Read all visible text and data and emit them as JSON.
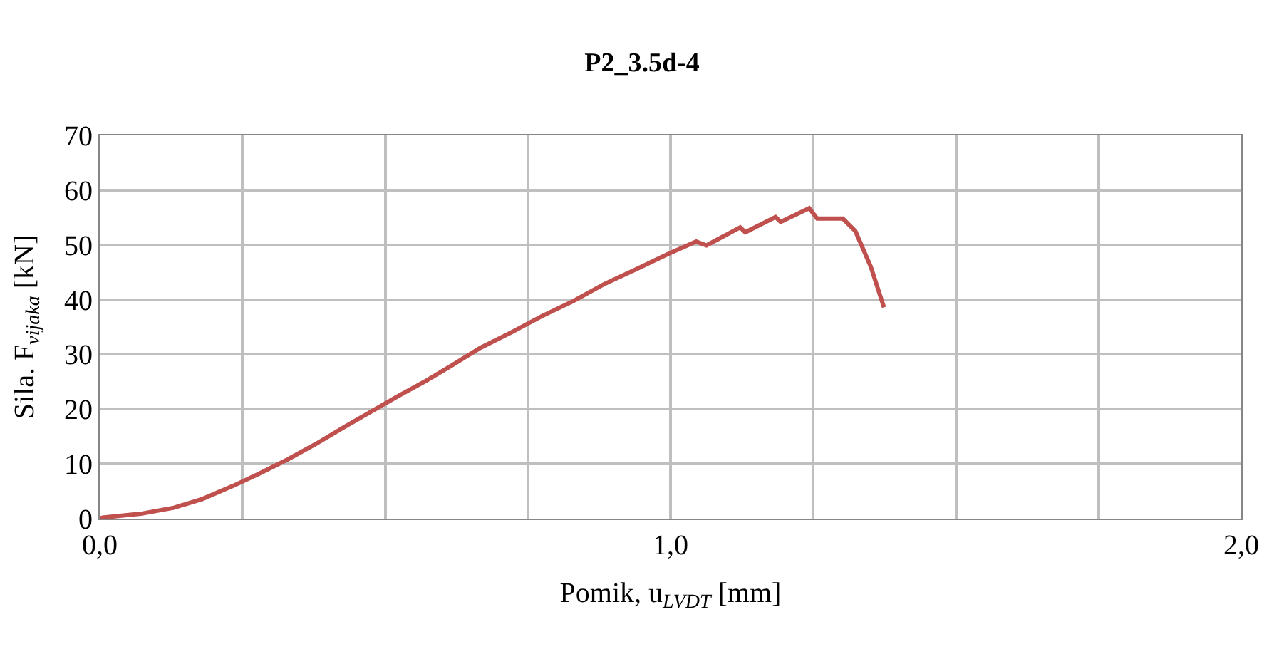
{
  "chart_data": {
    "type": "line",
    "title": "P2_3.5d-4",
    "xlabel": "Pomik, u$_{LVDT}$ [mm]",
    "ylabel": "Sila. F$_{vijaka}$ [kN]",
    "x": [
      0.0,
      0.005,
      0.072,
      0.13,
      0.18,
      0.234,
      0.279,
      0.329,
      0.378,
      0.428,
      0.473,
      0.523,
      0.572,
      0.617,
      0.667,
      0.721,
      0.775,
      0.829,
      0.883,
      0.941,
      0.995,
      1.045,
      1.063,
      1.122,
      1.131,
      1.184,
      1.193,
      1.243,
      1.257,
      1.302,
      1.324,
      1.351,
      1.374
    ],
    "series": [
      {
        "color": "#c0504d",
        "values": [
          0.0,
          0.2,
          0.9,
          2.0,
          3.6,
          6.0,
          8.2,
          10.8,
          13.6,
          16.7,
          19.4,
          22.4,
          25.2,
          28.0,
          31.2,
          34.0,
          37.0,
          39.7,
          42.8,
          45.6,
          48.3,
          50.6,
          49.9,
          53.2,
          52.3,
          55.1,
          54.2,
          56.7,
          54.8,
          54.8,
          52.5,
          46.0,
          38.6
        ]
      }
    ],
    "xlim": [
      0,
      2.0
    ],
    "ylim": [
      0,
      70
    ],
    "xticks": [
      {
        "value": 0,
        "label": "0,0"
      },
      {
        "value": 0.25,
        "label": null
      },
      {
        "value": 0.5,
        "label": null
      },
      {
        "value": 0.75,
        "label": null
      },
      {
        "value": 1.0,
        "label": "1,0"
      },
      {
        "value": 1.25,
        "label": null
      },
      {
        "value": 1.5,
        "label": null
      },
      {
        "value": 1.75,
        "label": null
      },
      {
        "value": 2.0,
        "label": "2,0"
      }
    ],
    "yticks": [
      0,
      10,
      20,
      30,
      40,
      50,
      60,
      70
    ],
    "grid": true,
    "marker": "none",
    "line_style": "solid"
  }
}
